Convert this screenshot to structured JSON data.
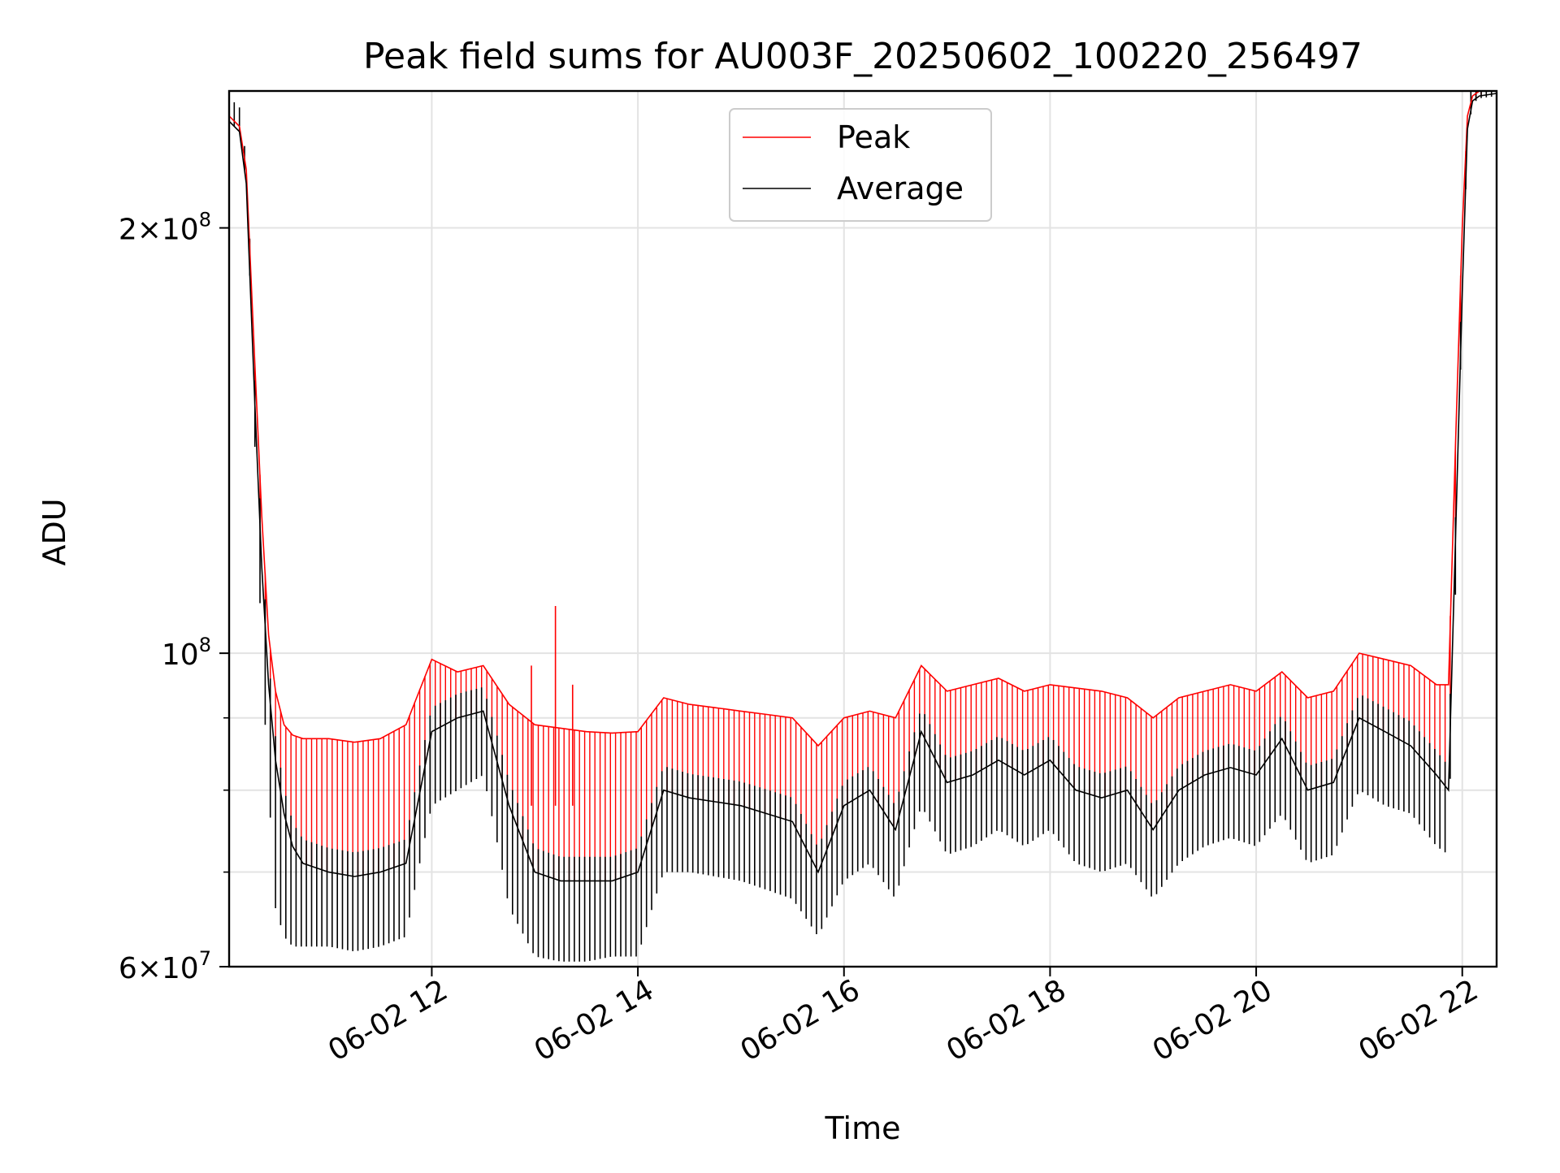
{
  "chart_data": {
    "type": "line",
    "title": "Peak field sums for AU003F_20250602_100220_256497",
    "xlabel": "Time",
    "ylabel": "ADU",
    "y_scale": "log",
    "x_range": [
      "2025-06-02 10:02",
      "2025-06-02 22:20"
    ],
    "ylim": [
      60000000,
      250000000
    ],
    "x_ticks": [
      "06-02 12",
      "06-02 14",
      "06-02 16",
      "06-02 18",
      "06-02 20",
      "06-02 22"
    ],
    "x_tick_times": [
      "2025-06-02 12:00",
      "2025-06-02 14:00",
      "2025-06-02 16:00",
      "2025-06-02 18:00",
      "2025-06-02 20:00",
      "2025-06-02 22:00"
    ],
    "y_ticks": [
      {
        "value": 60000000,
        "base": "6",
        "exp": "7"
      },
      {
        "value": 100000000,
        "base": "10",
        "exp": "8"
      },
      {
        "value": 200000000,
        "base": "2",
        "exp": "8"
      }
    ],
    "grid": true,
    "legend_position": "top-center",
    "series": [
      {
        "name": "Peak",
        "color": "#ff0000",
        "x": [
          "2025-06-02 10:02",
          "2025-06-02 10:08",
          "2025-06-02 10:12",
          "2025-06-02 10:17",
          "2025-06-02 10:21",
          "2025-06-02 10:25",
          "2025-06-02 10:29",
          "2025-06-02 10:34",
          "2025-06-02 10:39",
          "2025-06-02 10:45",
          "2025-06-02 11:00",
          "2025-06-02 11:15",
          "2025-06-02 11:30",
          "2025-06-02 11:45",
          "2025-06-02 12:00",
          "2025-06-02 12:15",
          "2025-06-02 12:30",
          "2025-06-02 12:45",
          "2025-06-02 13:00",
          "2025-06-02 13:15",
          "2025-06-02 13:30",
          "2025-06-02 13:45",
          "2025-06-02 14:00",
          "2025-06-02 14:15",
          "2025-06-02 14:30",
          "2025-06-02 14:45",
          "2025-06-02 15:00",
          "2025-06-02 15:15",
          "2025-06-02 15:30",
          "2025-06-02 15:45",
          "2025-06-02 16:00",
          "2025-06-02 16:15",
          "2025-06-02 16:30",
          "2025-06-02 16:45",
          "2025-06-02 17:00",
          "2025-06-02 17:15",
          "2025-06-02 17:30",
          "2025-06-02 17:45",
          "2025-06-02 18:00",
          "2025-06-02 18:15",
          "2025-06-02 18:30",
          "2025-06-02 18:45",
          "2025-06-02 19:00",
          "2025-06-02 19:15",
          "2025-06-02 19:30",
          "2025-06-02 19:45",
          "2025-06-02 20:00",
          "2025-06-02 20:15",
          "2025-06-02 20:30",
          "2025-06-02 20:45",
          "2025-06-02 21:00",
          "2025-06-02 21:15",
          "2025-06-02 21:30",
          "2025-06-02 21:45",
          "2025-06-02 21:52",
          "2025-06-02 21:56",
          "2025-06-02 22:00",
          "2025-06-02 22:03",
          "2025-06-02 22:06",
          "2025-06-02 22:10",
          "2025-06-02 22:20"
        ],
        "y": [
          240000000,
          236000000,
          220000000,
          160000000,
          125000000,
          103000000,
          94000000,
          89000000,
          87500000,
          87000000,
          87000000,
          86500000,
          87000000,
          89000000,
          99000000,
          97000000,
          98000000,
          92000000,
          89000000,
          88500000,
          88000000,
          87800000,
          88000000,
          93000000,
          92000000,
          91500000,
          91000000,
          90500000,
          90000000,
          86000000,
          90000000,
          91000000,
          90000000,
          98000000,
          94000000,
          95000000,
          96000000,
          94000000,
          95000000,
          94500000,
          94000000,
          93000000,
          90000000,
          93000000,
          94000000,
          95000000,
          94000000,
          97000000,
          93000000,
          94000000,
          100000000,
          99000000,
          98000000,
          95000000,
          95000000,
          140000000,
          200000000,
          240000000,
          248000000,
          250000000,
          250000000
        ],
        "spikes": [
          {
            "x": "2025-06-02 12:58",
            "y": 98000000
          },
          {
            "x": "2025-06-02 13:12",
            "y": 108000000
          },
          {
            "x": "2025-06-02 13:22",
            "y": 95000000
          }
        ]
      },
      {
        "name": "Average",
        "color": "#000000",
        "x": [
          "2025-06-02 10:02",
          "2025-06-02 10:08",
          "2025-06-02 10:12",
          "2025-06-02 10:17",
          "2025-06-02 10:21",
          "2025-06-02 10:25",
          "2025-06-02 10:29",
          "2025-06-02 10:34",
          "2025-06-02 10:39",
          "2025-06-02 10:45",
          "2025-06-02 11:00",
          "2025-06-02 11:15",
          "2025-06-02 11:30",
          "2025-06-02 11:45",
          "2025-06-02 12:00",
          "2025-06-02 12:15",
          "2025-06-02 12:30",
          "2025-06-02 12:45",
          "2025-06-02 13:00",
          "2025-06-02 13:15",
          "2025-06-02 13:30",
          "2025-06-02 13:45",
          "2025-06-02 14:00",
          "2025-06-02 14:15",
          "2025-06-02 14:30",
          "2025-06-02 14:45",
          "2025-06-02 15:00",
          "2025-06-02 15:15",
          "2025-06-02 15:30",
          "2025-06-02 15:45",
          "2025-06-02 16:00",
          "2025-06-02 16:15",
          "2025-06-02 16:30",
          "2025-06-02 16:45",
          "2025-06-02 17:00",
          "2025-06-02 17:15",
          "2025-06-02 17:30",
          "2025-06-02 17:45",
          "2025-06-02 18:00",
          "2025-06-02 18:15",
          "2025-06-02 18:30",
          "2025-06-02 18:45",
          "2025-06-02 19:00",
          "2025-06-02 19:15",
          "2025-06-02 19:30",
          "2025-06-02 19:45",
          "2025-06-02 20:00",
          "2025-06-02 20:15",
          "2025-06-02 20:30",
          "2025-06-02 20:45",
          "2025-06-02 21:00",
          "2025-06-02 21:15",
          "2025-06-02 21:30",
          "2025-06-02 21:45",
          "2025-06-02 21:52",
          "2025-06-02 21:56",
          "2025-06-02 22:00",
          "2025-06-02 22:03",
          "2025-06-02 22:06",
          "2025-06-02 22:10",
          "2025-06-02 22:20"
        ],
        "y": [
          238000000,
          234000000,
          215000000,
          150000000,
          115000000,
          95000000,
          84000000,
          77000000,
          73000000,
          71000000,
          70000000,
          69500000,
          70000000,
          71000000,
          88000000,
          90000000,
          91000000,
          78000000,
          70000000,
          69000000,
          69000000,
          69000000,
          70000000,
          80000000,
          79000000,
          78500000,
          78000000,
          77000000,
          76000000,
          70000000,
          78000000,
          80000000,
          75000000,
          88000000,
          81000000,
          82000000,
          84000000,
          82000000,
          84000000,
          80000000,
          79000000,
          80000000,
          75000000,
          80000000,
          82000000,
          83000000,
          82000000,
          87000000,
          80000000,
          81000000,
          90000000,
          88000000,
          86000000,
          82000000,
          80000000,
          120000000,
          180000000,
          235000000,
          246000000,
          248000000,
          249000000
        ],
        "band_low": [
          238000000,
          234000000,
          215000000,
          140000000,
          98000000,
          80000000,
          66000000,
          63000000,
          62000000,
          62000000,
          62000000,
          61500000,
          62000000,
          63000000,
          78000000,
          80000000,
          82000000,
          66000000,
          61000000,
          60500000,
          60500000,
          61000000,
          61000000,
          70000000,
          70000000,
          69500000,
          69000000,
          68000000,
          67000000,
          63000000,
          69000000,
          71000000,
          67000000,
          78000000,
          72000000,
          73000000,
          75000000,
          73000000,
          75000000,
          71000000,
          70000000,
          71000000,
          67000000,
          71000000,
          73000000,
          74000000,
          73000000,
          77000000,
          71000000,
          72000000,
          80000000,
          78000000,
          77000000,
          73000000,
          72000000,
          110000000,
          175000000,
          232000000,
          245000000,
          247000000,
          248000000
        ]
      }
    ]
  }
}
